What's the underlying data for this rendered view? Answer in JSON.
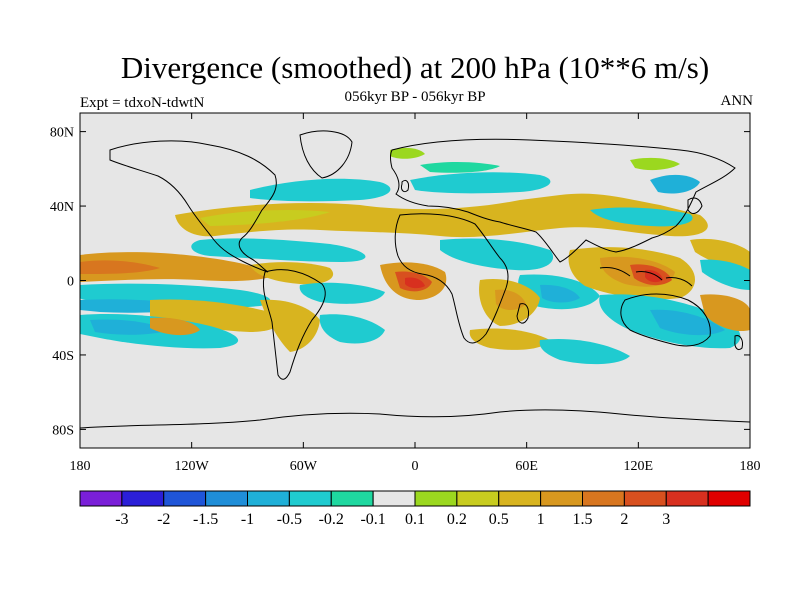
{
  "header": {
    "title": "Divergence (smoothed) at 200 hPa (10**6 m/s)",
    "subtitle": "056kyr BP - 056kyr BP",
    "left_label": "Expt = tdxoN-tdwtN",
    "right_label": "ANN"
  },
  "map": {
    "projection": "cylindrical-equidistant",
    "lon_range": [
      -180,
      180
    ],
    "lat_range": [
      -90,
      90
    ],
    "lat_ticks": [
      {
        "value": 80,
        "label": "80N"
      },
      {
        "value": 40,
        "label": "40N"
      },
      {
        "value": 0,
        "label": "0"
      },
      {
        "value": -40,
        "label": "40S"
      },
      {
        "value": -80,
        "label": "80S"
      }
    ],
    "lon_ticks": [
      {
        "value": -180,
        "label": "180"
      },
      {
        "value": -120,
        "label": "120W"
      },
      {
        "value": -60,
        "label": "60W"
      },
      {
        "value": 0,
        "label": "0"
      },
      {
        "value": 60,
        "label": "60E"
      },
      {
        "value": 120,
        "label": "120E"
      },
      {
        "value": 180,
        "label": "180"
      }
    ],
    "background_color": "#e6e6e6",
    "coastline_color": "#000000"
  },
  "colorbar": {
    "colors": [
      "#7a1fd8",
      "#2b1fd8",
      "#1f55d8",
      "#1f8ed8",
      "#1fb0d8",
      "#1fcbd0",
      "#1fd8a0",
      "#e6e6e6",
      "#9bd81f",
      "#c8cc1f",
      "#d8b41f",
      "#d8981f",
      "#d8761f",
      "#d8501f",
      "#d8301f",
      "#e00000"
    ],
    "labels": [
      "-3",
      "-2",
      "-1.5",
      "-1",
      "-0.5",
      "-0.2",
      "-0.1",
      "0.1",
      "0.2",
      "0.5",
      "1",
      "1.5",
      "2",
      "3"
    ]
  }
}
